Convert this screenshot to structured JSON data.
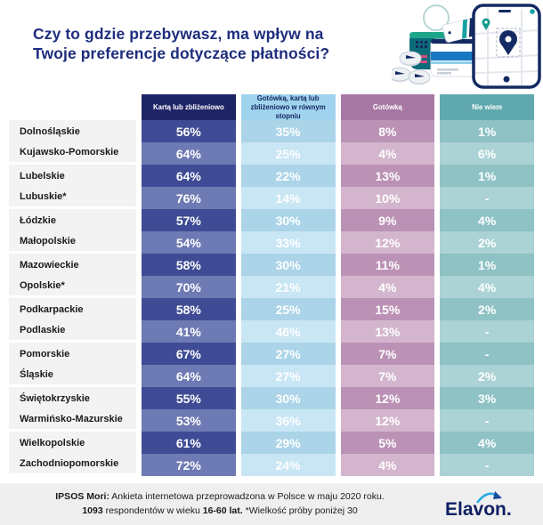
{
  "title": {
    "line1": "Czy to gdzie przebywasz, ma wpływ na",
    "line2": "Twoje preferencje dotyczące płatności?"
  },
  "chart_data": {
    "type": "table",
    "columns": [
      "Kartą lub zbliżeniowo",
      "Gotówką, kartą lub zbliżeniowo w równym stopniu",
      "Gotówką",
      "Nie wiem"
    ],
    "rows": [
      {
        "region": "Dolnośląskie",
        "values": [
          "56%",
          "35%",
          "8%",
          "1%"
        ]
      },
      {
        "region": "Kujawsko-Pomorskie",
        "values": [
          "64%",
          "25%",
          "4%",
          "6%"
        ]
      },
      {
        "region": "Lubelskie",
        "values": [
          "64%",
          "22%",
          "13%",
          "1%"
        ]
      },
      {
        "region": "Lubuskie*",
        "values": [
          "76%",
          "14%",
          "10%",
          "-"
        ]
      },
      {
        "region": "Łódzkie",
        "values": [
          "57%",
          "30%",
          "9%",
          "4%"
        ]
      },
      {
        "region": "Małopolskie",
        "values": [
          "54%",
          "33%",
          "12%",
          "2%"
        ]
      },
      {
        "region": "Mazowieckie",
        "values": [
          "58%",
          "30%",
          "11%",
          "1%"
        ]
      },
      {
        "region": "Opolskie*",
        "values": [
          "70%",
          "21%",
          "4%",
          "4%"
        ]
      },
      {
        "region": "Podkarpackie",
        "values": [
          "58%",
          "25%",
          "15%",
          "2%"
        ]
      },
      {
        "region": "Podlaskie",
        "values": [
          "41%",
          "46%",
          "13%",
          "-"
        ]
      },
      {
        "region": "Pomorskie",
        "values": [
          "67%",
          "27%",
          "7%",
          "-"
        ]
      },
      {
        "region": "Śląskie",
        "values": [
          "64%",
          "27%",
          "7%",
          "2%"
        ]
      },
      {
        "region": "Świętokrzyskie",
        "values": [
          "55%",
          "30%",
          "12%",
          "3%"
        ]
      },
      {
        "region": "Warmińsko-Mazurskie",
        "values": [
          "53%",
          "36%",
          "12%",
          "-"
        ]
      },
      {
        "region": "Wielkopolskie",
        "values": [
          "61%",
          "29%",
          "5%",
          "4%"
        ]
      },
      {
        "region": "Zachodniopomorskie",
        "values": [
          "72%",
          "24%",
          "4%",
          "-"
        ]
      }
    ]
  },
  "footer": {
    "line1_bold": "IPSOS Mori:",
    "line1_text": " Ankieta internetowa przeprowadzona w Polsce w maju 2020 roku.",
    "line2_bold1": "1093",
    "line2_text1": " respondentów w wieku ",
    "line2_bold2": "16-60 lat.",
    "line2_text2": " *Wielkość próby poniżej 30",
    "logo_text": "Elavon."
  },
  "icons": {
    "illustration": "payments-illustration (smartphone with map pin, credit cards, card reader, price tag, coins)",
    "logo_swoosh": "elavon-swoosh-arrow"
  },
  "colors": {
    "title": "#1e2d7d",
    "col1_header": "#1e2566",
    "col1_odd": "#3f4c95",
    "col1_even": "#6e7ab3",
    "col2_header": "#9fd3ee",
    "col2_odd": "#abd4e8",
    "col2_even": "#c9e6f4",
    "col2_text": "#1b459b",
    "col3_header": "#a678a2",
    "col3_odd": "#bb92b5",
    "col3_even": "#d3b6cd",
    "col4_header": "#5fa9ae",
    "col4_odd": "#8ec2c5",
    "col4_even": "#abd2d4",
    "label_bg": "#f3f3f4",
    "footer_bg": "#efefef",
    "navy": "#16265c",
    "teal": "#14a0a0"
  }
}
